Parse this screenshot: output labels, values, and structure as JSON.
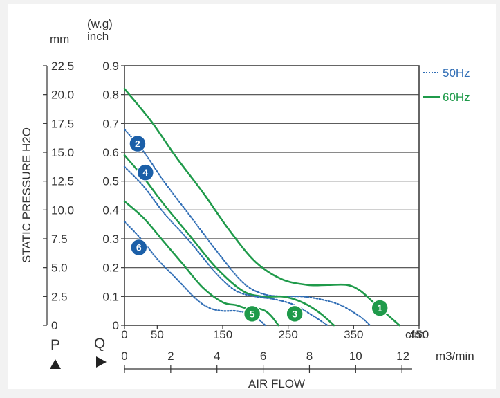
{
  "chart_data": {
    "type": "line",
    "xlabel": "AIR FLOW",
    "ylabel": "STATIC PRESSURE H2O",
    "y_units": {
      "mm": "mm",
      "inch_top": "(w.g)",
      "inch_bottom": "inch"
    },
    "x_units": {
      "cfm": "cfm",
      "m3min": "m3/min"
    },
    "x_cfm_ticks": [
      "0",
      "50",
      "150",
      "250",
      "350",
      "450"
    ],
    "x_m3min_ticks": [
      "0",
      "2",
      "4",
      "6",
      "8",
      "10",
      "12"
    ],
    "y_inch_ticks": [
      "0",
      "0.1",
      "0.2",
      "0.3",
      "0.4",
      "0.5",
      "0.6",
      "0.7",
      "0.8",
      "0.9"
    ],
    "y_mm_ticks": [
      "0",
      "2.5",
      "5.0",
      "7.5",
      "10.0",
      "12.5",
      "15.0",
      "17.5",
      "20.0",
      "22.5"
    ],
    "xlim_cfm": [
      0,
      450
    ],
    "ylim_inch": [
      0,
      0.9
    ],
    "axis_markers": {
      "p": "P",
      "q": "Q"
    },
    "grid": "horizontal",
    "legend": {
      "position": "right",
      "entries": [
        {
          "label": "50Hz",
          "color": "#2f6db5",
          "style": "dotted"
        },
        {
          "label": "60Hz",
          "color": "#1f9a4a",
          "style": "solid"
        }
      ]
    },
    "series": [
      {
        "name": "1",
        "hz": "60Hz",
        "color": "#1f9a4a",
        "dashed": false,
        "points": [
          [
            0,
            0.82
          ],
          [
            40,
            0.71
          ],
          [
            80,
            0.58
          ],
          [
            120,
            0.46
          ],
          [
            160,
            0.33
          ],
          [
            200,
            0.22
          ],
          [
            240,
            0.16
          ],
          [
            280,
            0.14
          ],
          [
            310,
            0.14
          ],
          [
            340,
            0.14
          ],
          [
            360,
            0.12
          ],
          [
            380,
            0.08
          ],
          [
            395,
            0.05
          ],
          [
            420,
            0
          ]
        ]
      },
      {
        "name": "2",
        "hz": "50Hz",
        "color": "#2f6db5",
        "dashed": true,
        "points": [
          [
            0,
            0.68
          ],
          [
            30,
            0.6
          ],
          [
            60,
            0.5
          ],
          [
            100,
            0.38
          ],
          [
            140,
            0.26
          ],
          [
            180,
            0.15
          ],
          [
            210,
            0.11
          ],
          [
            240,
            0.1
          ],
          [
            270,
            0.1
          ],
          [
            300,
            0.09
          ],
          [
            330,
            0.07
          ],
          [
            360,
            0.03
          ],
          [
            375,
            0
          ]
        ]
      },
      {
        "name": "3",
        "hz": "60Hz",
        "color": "#1f9a4a",
        "dashed": false,
        "points": [
          [
            0,
            0.59
          ],
          [
            30,
            0.51
          ],
          [
            60,
            0.42
          ],
          [
            100,
            0.31
          ],
          [
            140,
            0.2
          ],
          [
            180,
            0.12
          ],
          [
            210,
            0.1
          ],
          [
            240,
            0.1
          ],
          [
            260,
            0.09
          ],
          [
            280,
            0.07
          ],
          [
            300,
            0.04
          ],
          [
            320,
            0
          ]
        ]
      },
      {
        "name": "4",
        "hz": "50Hz",
        "color": "#2f6db5",
        "dashed": true,
        "points": [
          [
            0,
            0.55
          ],
          [
            30,
            0.48
          ],
          [
            60,
            0.39
          ],
          [
            100,
            0.29
          ],
          [
            140,
            0.18
          ],
          [
            170,
            0.12
          ],
          [
            200,
            0.1
          ],
          [
            230,
            0.09
          ],
          [
            260,
            0.07
          ],
          [
            290,
            0.03
          ],
          [
            310,
            0
          ]
        ]
      },
      {
        "name": "5",
        "hz": "60Hz",
        "color": "#1f9a4a",
        "dashed": false,
        "points": [
          [
            0,
            0.43
          ],
          [
            30,
            0.37
          ],
          [
            60,
            0.29
          ],
          [
            90,
            0.21
          ],
          [
            120,
            0.13
          ],
          [
            150,
            0.08
          ],
          [
            170,
            0.07
          ],
          [
            185,
            0.06
          ],
          [
            200,
            0.06
          ],
          [
            215,
            0.05
          ],
          [
            225,
            0.03
          ],
          [
            235,
            0
          ]
        ]
      },
      {
        "name": "6",
        "hz": "50Hz",
        "color": "#2f6db5",
        "dashed": true,
        "points": [
          [
            0,
            0.36
          ],
          [
            25,
            0.3
          ],
          [
            50,
            0.23
          ],
          [
            80,
            0.16
          ],
          [
            110,
            0.09
          ],
          [
            130,
            0.06
          ],
          [
            150,
            0.05
          ],
          [
            170,
            0.05
          ],
          [
            190,
            0.04
          ],
          [
            205,
            0.02
          ],
          [
            215,
            0
          ]
        ]
      }
    ],
    "curve_labels": [
      {
        "label": "1",
        "color": "#1f9a4a",
        "at": [
          390,
          0.06
        ]
      },
      {
        "label": "2",
        "color": "#1b5fa8",
        "at": [
          20,
          0.63
        ]
      },
      {
        "label": "3",
        "color": "#1f9a4a",
        "at": [
          260,
          0.04
        ]
      },
      {
        "label": "4",
        "color": "#1b5fa8",
        "at": [
          32,
          0.53
        ]
      },
      {
        "label": "5",
        "color": "#1f9a4a",
        "at": [
          195,
          0.04
        ]
      },
      {
        "label": "6",
        "color": "#1b5fa8",
        "at": [
          22,
          0.27
        ]
      }
    ]
  }
}
